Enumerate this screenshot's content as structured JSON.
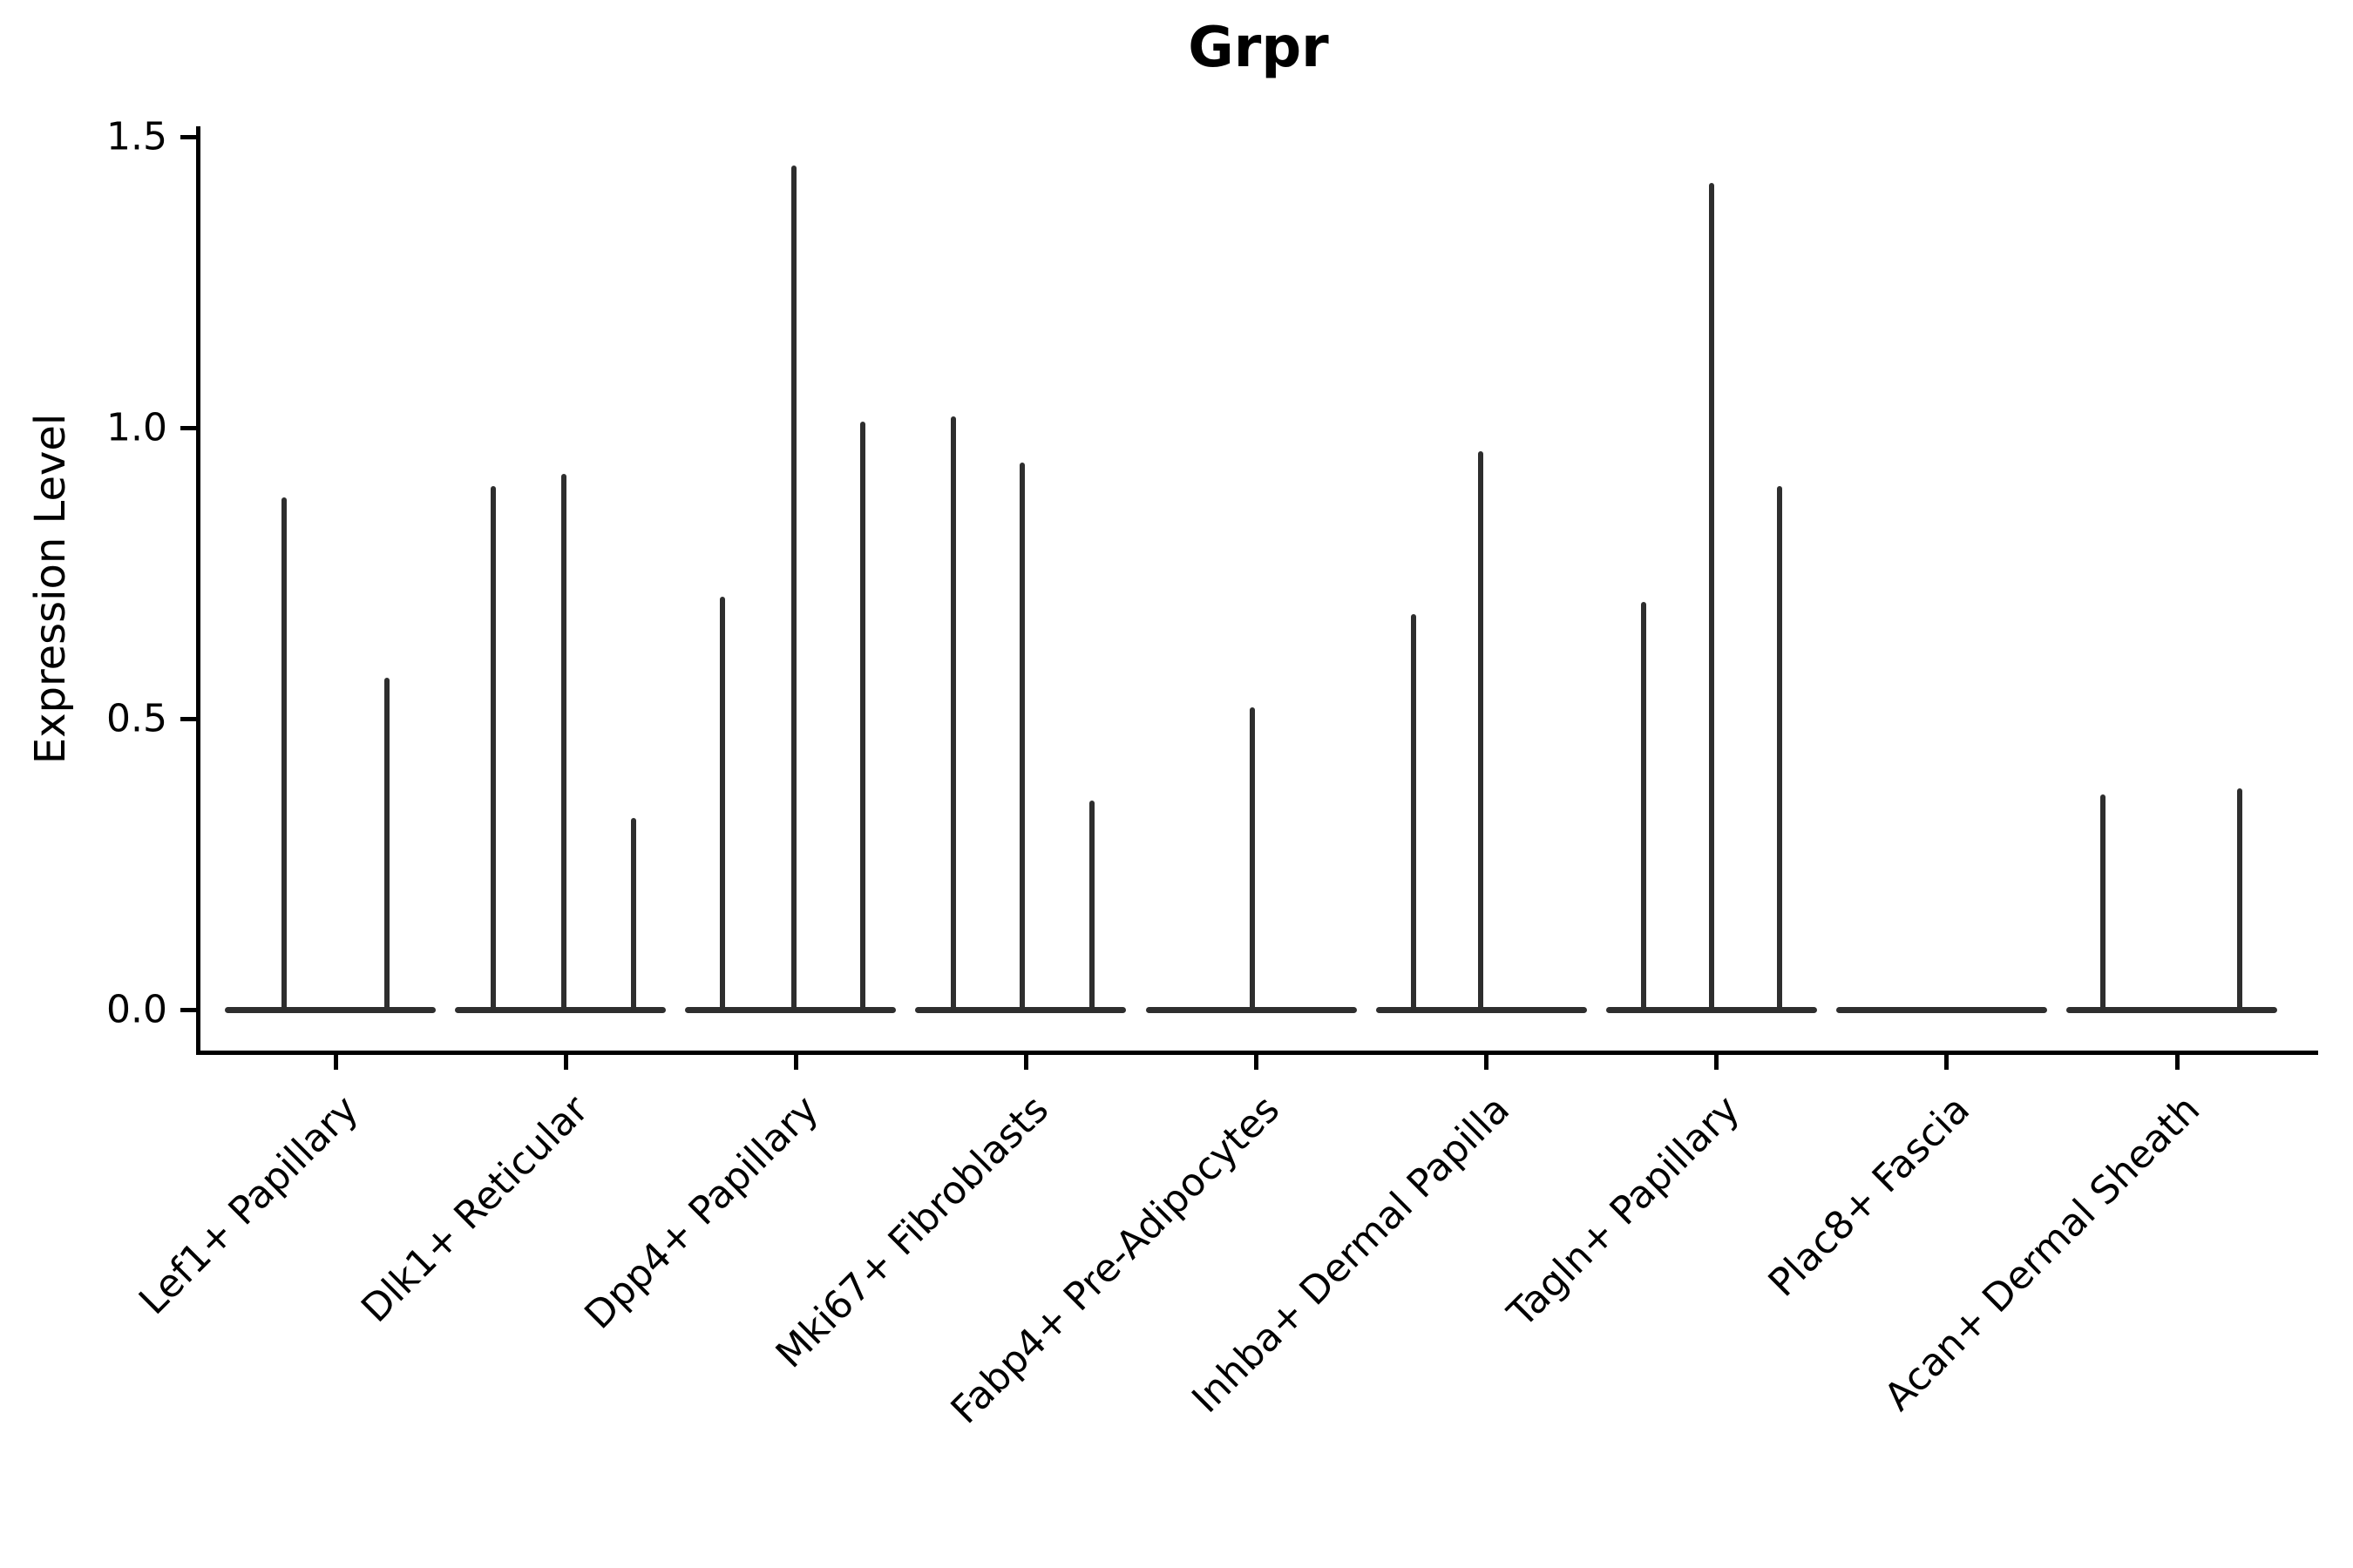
{
  "title": "Grpr",
  "y_axis": {
    "label": "Expression Level",
    "tick_labels": [
      "0.0",
      "0.5",
      "1.0",
      "1.5"
    ],
    "tick_values": [
      0.0,
      0.5,
      1.0,
      1.5
    ]
  },
  "x_axis": {
    "categories": [
      "Lef1+ Papillary",
      "Dlk1+ Reticular",
      "Dpp4+ Papillary",
      "Mki67+ Fibroblasts",
      "Fabp4+ Pre-Adipocytes",
      "Inhba+ Dermal Papilla",
      "Tagln+ Papillary",
      "Plac8+ Fascia",
      "Acan+ Dermal Sheath"
    ]
  },
  "ink_color": "#2e2e2e",
  "chart_data": {
    "type": "violin",
    "title": "Grpr",
    "xlabel": "",
    "ylabel": "Expression Level",
    "ylim": [
      -0.08,
      1.52
    ],
    "yticks": [
      0.0,
      0.5,
      1.0,
      1.5
    ],
    "grid": false,
    "legend": "none",
    "categories": [
      "Lef1+ Papillary",
      "Dlk1+ Reticular",
      "Dpp4+ Papillary",
      "Mki67+ Fibroblasts",
      "Fabp4+ Pre-Adipocytes",
      "Inhba+ Dermal Papilla",
      "Tagln+ Papillary",
      "Plac8+ Fascia",
      "Acan+ Dermal Sheath"
    ],
    "description": "Spike-shaped violins: expression mass concentrated at 0 (flat base bar per category); thin vertical spikes reach each sub-violin's maximum expression value.",
    "series": [
      {
        "category": "Lef1+ Papillary",
        "violins": [
          {
            "dx": -59,
            "max": 0.88
          },
          {
            "dx": 59,
            "max": 0.57
          }
        ]
      },
      {
        "category": "Dlk1+ Reticular",
        "violins": [
          {
            "dx": -83,
            "max": 0.9
          },
          {
            "dx": -2,
            "max": 0.92
          },
          {
            "dx": 78,
            "max": 0.33
          }
        ]
      },
      {
        "category": "Dpp4+ Papillary",
        "violins": [
          {
            "dx": -84,
            "max": 0.71
          },
          {
            "dx": -2,
            "max": 1.45
          },
          {
            "dx": 77,
            "max": 1.01
          }
        ]
      },
      {
        "category": "Mki67+ Fibroblasts",
        "violins": [
          {
            "dx": -83,
            "max": 1.02
          },
          {
            "dx": -4,
            "max": 0.94
          },
          {
            "dx": 76,
            "max": 0.36
          }
        ]
      },
      {
        "category": "Fabp4+ Pre-Adipocytes",
        "violins": [
          {
            "dx": -5,
            "max": 0.52
          }
        ]
      },
      {
        "category": "Inhba+ Dermal Papilla",
        "violins": [
          {
            "dx": -84,
            "max": 0.68
          },
          {
            "dx": -7,
            "max": 0.96
          }
        ]
      },
      {
        "category": "Tagln+ Papillary",
        "violins": [
          {
            "dx": -84,
            "max": 0.7
          },
          {
            "dx": -6,
            "max": 1.42
          },
          {
            "dx": 72,
            "max": 0.9
          }
        ]
      },
      {
        "category": "Plac8+ Fascia",
        "violins": []
      },
      {
        "category": "Acan+ Dermal Sheath",
        "violins": [
          {
            "dx": -85,
            "max": 0.37
          },
          {
            "dx": 72,
            "max": 0.38
          }
        ]
      }
    ]
  }
}
